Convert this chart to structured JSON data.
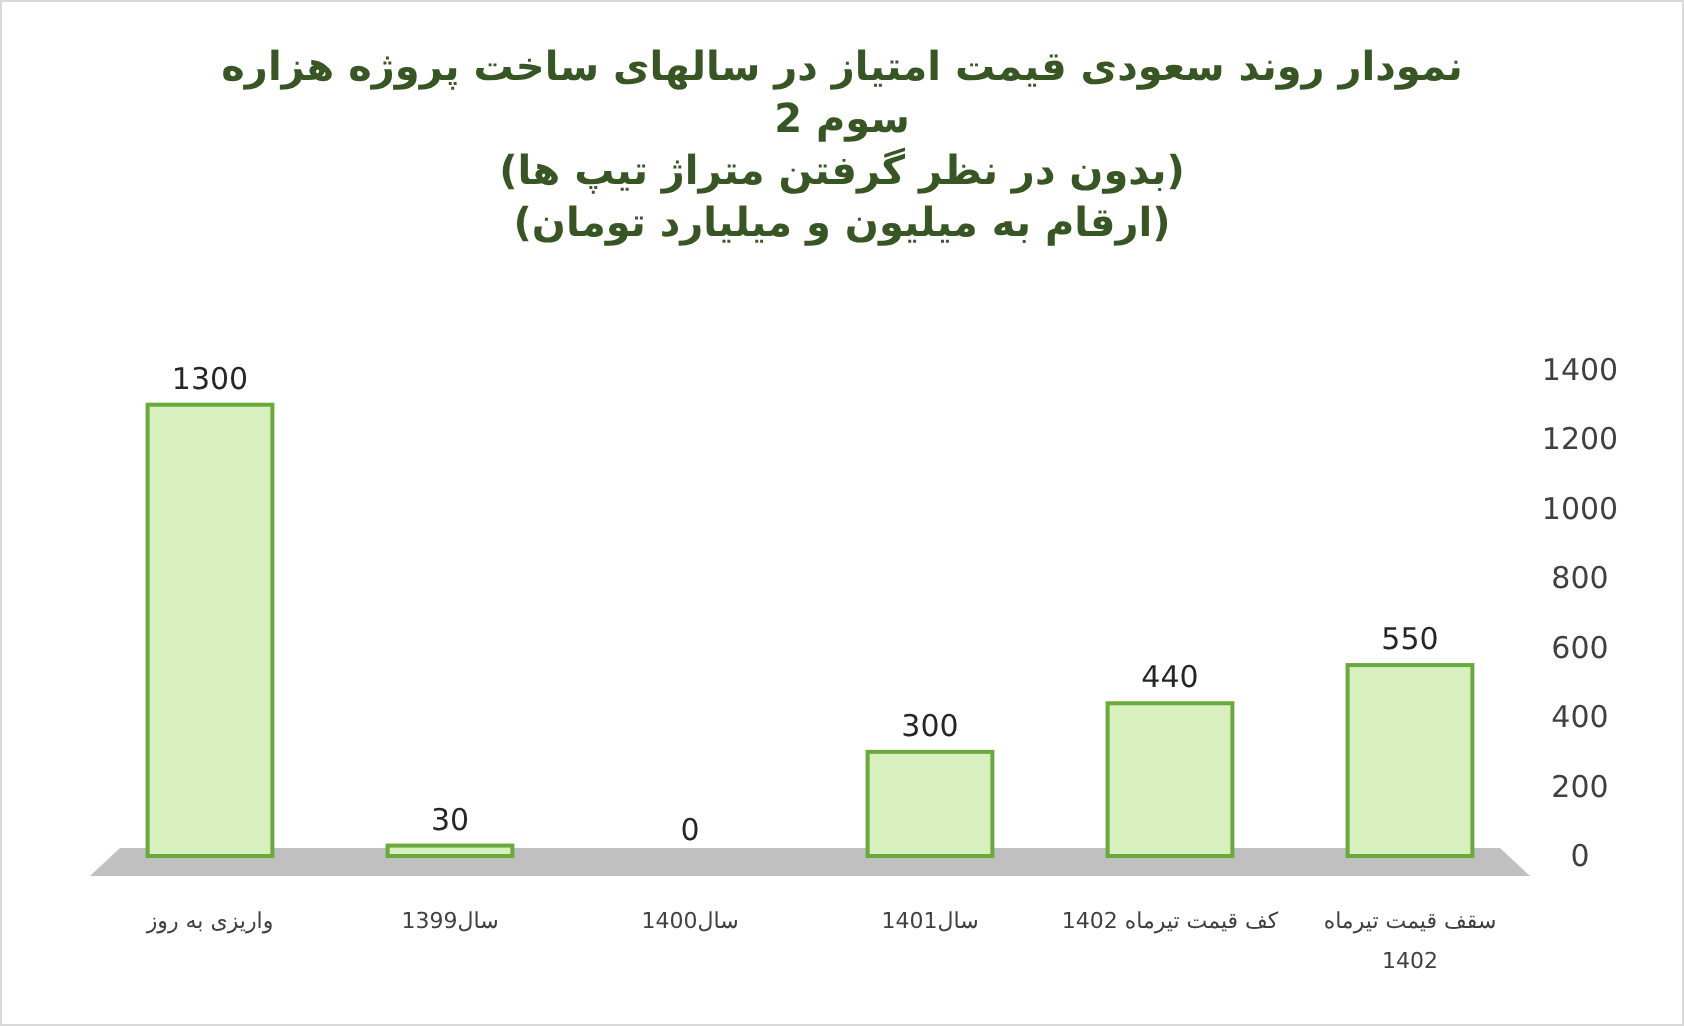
{
  "chart_data": {
    "type": "bar",
    "title": "نمودار روند سعودی قیمت امتیاز در سالهای ساخت پروژه هزاره سوم 2",
    "subtitle": "(بدون در نظر گرفتن متراژ تیپ ها)",
    "annotations": [
      "(ارقام به میلیون و میلیارد تومان)"
    ],
    "categories": [
      "واریزی به روز",
      "سال1399",
      "سال1400",
      "سال1401",
      "کف قیمت تیرماه 1402",
      "سقف قیمت تیرماه 1402"
    ],
    "values": [
      1300,
      30,
      0,
      300,
      440,
      550
    ],
    "color": "#d8efc0",
    "ylim": [
      0,
      1400
    ],
    "yticks": [
      0,
      200,
      400,
      600,
      800,
      1000,
      1200,
      1400
    ],
    "data_labels": true
  }
}
